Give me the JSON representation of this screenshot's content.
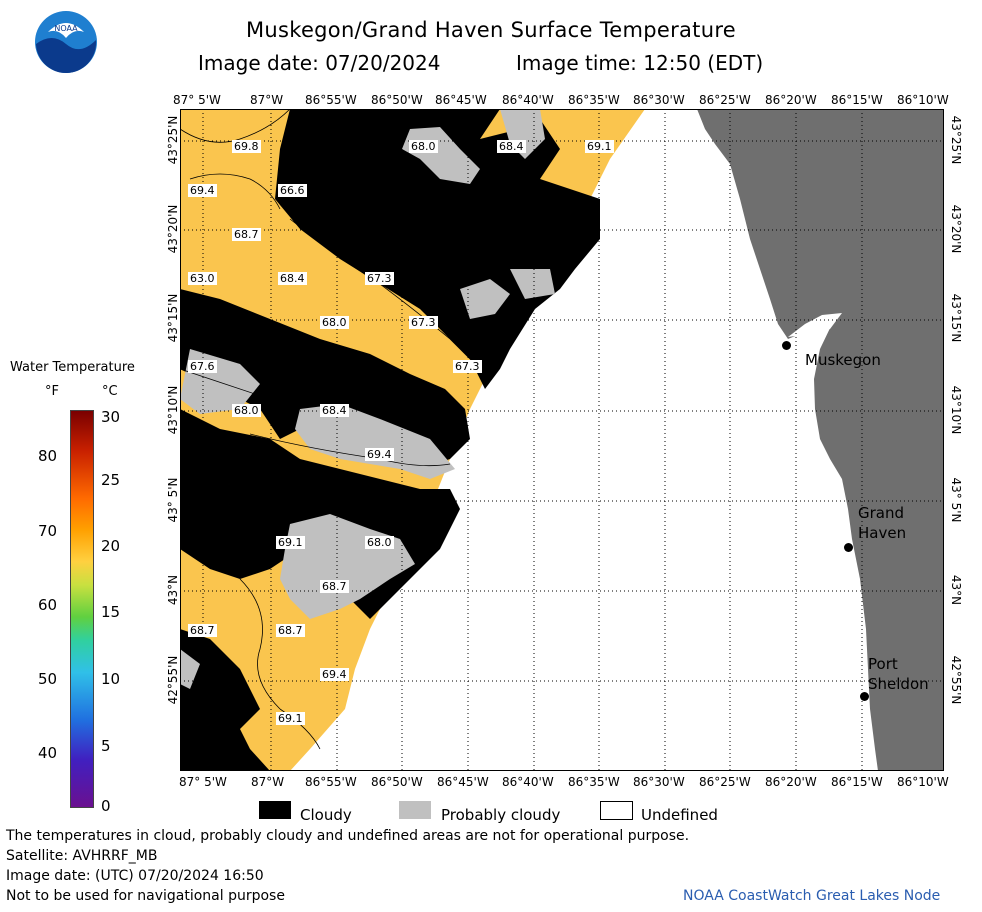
{
  "header": {
    "title": "Muskegon/Grand Haven Surface Temperature",
    "image_date": "Image date: 07/20/2024",
    "image_time": "Image time: 12:50 (EDT)",
    "logo_text": "NOAA"
  },
  "axes": {
    "top_ticks": [
      "87° 5'W",
      "87°W",
      "86°55'W",
      "86°50'W",
      "86°45'W",
      "86°40'W",
      "86°35'W",
      "86°30'W",
      "86°25'W",
      "86°20'W",
      "86°15'W",
      "86°10'W"
    ],
    "bottom_ticks": [
      "87° 5'W",
      "87°W",
      "86°55'W",
      "86°50'W",
      "86°45'W",
      "86°40'W",
      "86°35'W",
      "86°30'W",
      "86°25'W",
      "86°20'W",
      "86°15'W",
      "86°10'W"
    ],
    "lat_ticks": [
      "43°25'N",
      "43°20'N",
      "43°15'N",
      "43°10'N",
      "43° 5'N",
      "43°N",
      "42°55'N"
    ]
  },
  "map": {
    "temperature_labels": [
      "69.8",
      "68.0",
      "68.4",
      "69.1",
      "69.4",
      "66.6",
      "68.7",
      "63.0",
      "68.4",
      "67.3",
      "68.0",
      "67.3",
      "67.6",
      "67.3",
      "68.0",
      "68.4",
      "69.4",
      "69.1",
      "68.0",
      "68.7",
      "68.7",
      "68.7",
      "69.4",
      "69.1"
    ],
    "cities": [
      "Muskegon",
      "Grand\nHaven",
      "Port\nSheldon"
    ],
    "colors": {
      "cloudy": "#000000",
      "probably_cloudy": "#c0c0c0",
      "land": "#6f6f6f",
      "water_warm": "#fac54e"
    }
  },
  "colorbar": {
    "title": "Water Temperature",
    "unit_f": "°F",
    "unit_c": "°C",
    "f_ticks": [
      "80",
      "70",
      "60",
      "50",
      "40"
    ],
    "c_ticks": [
      "30",
      "25",
      "20",
      "15",
      "10",
      "5",
      "0"
    ]
  },
  "legend": {
    "cloudy": "Cloudy",
    "probably_cloudy": "Probably cloudy",
    "undefined": "Undefined"
  },
  "footer": {
    "disclaimer": "The temperatures in cloud, probably cloudy and undefined areas are not for operational purpose.",
    "satellite": "Satellite: AVHRRF_MB",
    "utc_date": "Image date: (UTC) 07/20/2024  16:50",
    "nav": "Not to be used for navigational purpose",
    "credit": "NOAA CoastWatch Great Lakes Node"
  }
}
